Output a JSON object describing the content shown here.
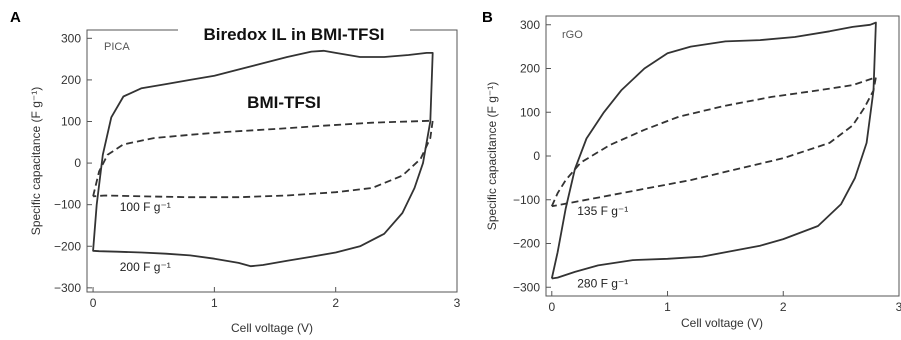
{
  "chart_data": [
    {
      "type": "line",
      "panel": "A",
      "tag": "PICA",
      "title": "Biredox IL in BMI-TFSI",
      "subtitle": "BMI-TFSI",
      "xlabel": "Cell voltage (V)",
      "ylabel": "Specific capacitance (F g⁻¹)",
      "xlim": [
        -0.05,
        3.0
      ],
      "ylim": [
        -310,
        320
      ],
      "xticks": [
        0,
        1,
        2,
        3
      ],
      "yticks": [
        -300,
        -200,
        -100,
        0,
        100,
        200,
        300
      ],
      "annotations": [
        {
          "text": "100 F g⁻¹",
          "x": 0.22,
          "y": -115
        },
        {
          "text": "200 F g⁻¹",
          "x": 0.22,
          "y": -260
        }
      ],
      "series": [
        {
          "style": "solid",
          "x": [
            0.0,
            0.03,
            0.08,
            0.15,
            0.25,
            0.4,
            0.6,
            0.8,
            1.0,
            1.2,
            1.4,
            1.6,
            1.8,
            1.9,
            2.0,
            2.2,
            2.4,
            2.6,
            2.75,
            2.8,
            2.78,
            2.72,
            2.65,
            2.55,
            2.4,
            2.2,
            2.0,
            1.8,
            1.6,
            1.4,
            1.3,
            1.2,
            1.0,
            0.8,
            0.6,
            0.4,
            0.2,
            0.05,
            0.0,
            0.0
          ],
          "y": [
            -210,
            -100,
            20,
            110,
            160,
            180,
            190,
            200,
            210,
            225,
            240,
            255,
            268,
            270,
            265,
            255,
            255,
            260,
            265,
            265,
            100,
            0,
            -60,
            -120,
            -170,
            -200,
            -215,
            -225,
            -235,
            -245,
            -248,
            -240,
            -230,
            -222,
            -218,
            -215,
            -213,
            -212,
            -211,
            -210
          ]
        },
        {
          "style": "dashed",
          "x": [
            0.0,
            0.05,
            0.12,
            0.25,
            0.5,
            0.8,
            1.1,
            1.5,
            1.9,
            2.3,
            2.6,
            2.8,
            2.78,
            2.7,
            2.55,
            2.3,
            2.0,
            1.6,
            1.2,
            0.8,
            0.4,
            0.1,
            0.0
          ],
          "y": [
            -80,
            -20,
            20,
            45,
            60,
            68,
            75,
            82,
            90,
            97,
            100,
            102,
            60,
            10,
            -30,
            -60,
            -70,
            -78,
            -82,
            -82,
            -80,
            -78,
            -80
          ]
        }
      ]
    },
    {
      "type": "line",
      "panel": "B",
      "tag": "rGO",
      "xlabel": "Cell voltage (V)",
      "ylabel": "Specific capacitance (F g⁻¹)",
      "xlim": [
        -0.05,
        3.0
      ],
      "ylim": [
        -320,
        320
      ],
      "xticks": [
        0,
        1,
        2,
        3
      ],
      "yticks": [
        -300,
        -200,
        -100,
        0,
        100,
        200,
        300
      ],
      "annotations": [
        {
          "text": "135 F g⁻¹",
          "x": 0.22,
          "y": -135
        },
        {
          "text": "280 F g⁻¹",
          "x": 0.22,
          "y": -300
        }
      ],
      "series": [
        {
          "style": "solid",
          "x": [
            0.0,
            0.05,
            0.12,
            0.2,
            0.3,
            0.45,
            0.6,
            0.8,
            1.0,
            1.2,
            1.5,
            1.8,
            2.1,
            2.4,
            2.6,
            2.75,
            2.8,
            2.78,
            2.72,
            2.62,
            2.5,
            2.3,
            2.0,
            1.8,
            1.5,
            1.3,
            1.0,
            0.7,
            0.4,
            0.2,
            0.05,
            0.0
          ],
          "y": [
            -280,
            -220,
            -120,
            -30,
            40,
            100,
            150,
            200,
            235,
            250,
            262,
            265,
            272,
            285,
            295,
            300,
            305,
            150,
            30,
            -50,
            -110,
            -160,
            -190,
            -205,
            -220,
            -230,
            -235,
            -238,
            -250,
            -265,
            -278,
            -280
          ]
        },
        {
          "style": "dashed",
          "x": [
            0.0,
            0.05,
            0.12,
            0.25,
            0.5,
            0.8,
            1.1,
            1.5,
            1.9,
            2.3,
            2.6,
            2.8,
            2.78,
            2.7,
            2.6,
            2.4,
            2.0,
            1.6,
            1.2,
            0.8,
            0.4,
            0.1,
            0.0
          ],
          "y": [
            -115,
            -85,
            -55,
            -15,
            25,
            60,
            90,
            115,
            135,
            150,
            162,
            180,
            150,
            110,
            70,
            30,
            -5,
            -30,
            -55,
            -75,
            -95,
            -110,
            -115
          ]
        }
      ]
    }
  ]
}
